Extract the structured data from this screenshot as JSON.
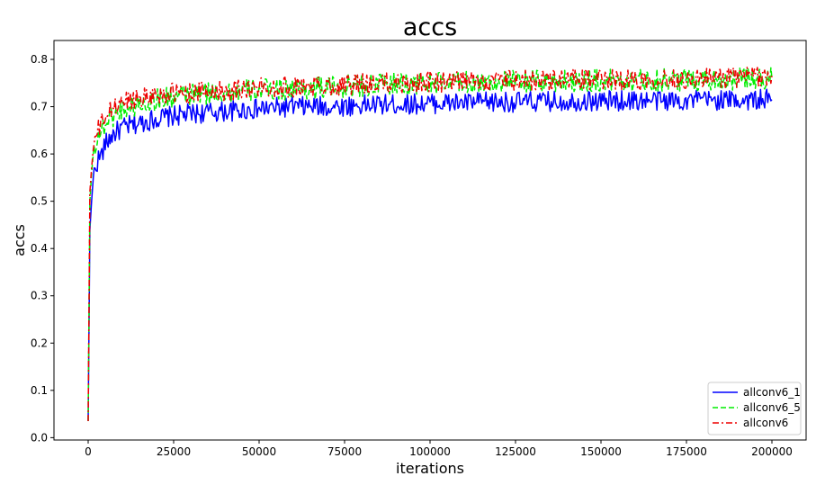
{
  "chart_data": {
    "type": "line",
    "title": "accs",
    "xlabel": "iterations",
    "ylabel": "accs",
    "xlim": [
      -10000,
      210000
    ],
    "ylim": [
      -0.005,
      0.84
    ],
    "grid": false,
    "legend_position": "lower-right",
    "xticks": [
      0,
      25000,
      50000,
      75000,
      100000,
      125000,
      150000,
      175000,
      200000
    ],
    "xtick_labels": [
      "0",
      "25000",
      "50000",
      "75000",
      "100000",
      "125000",
      "150000",
      "175000",
      "200000"
    ],
    "yticks": [
      0.0,
      0.1,
      0.2,
      0.3,
      0.4,
      0.5,
      0.6,
      0.7,
      0.8
    ],
    "ytick_labels": [
      "0.0",
      "0.1",
      "0.2",
      "0.3",
      "0.4",
      "0.5",
      "0.6",
      "0.7",
      "0.8"
    ],
    "series": [
      {
        "name": "allconv6_1",
        "color": "#0000ff",
        "style": "solid",
        "x": [
          0,
          500,
          1000,
          1500,
          2000,
          3000,
          4000,
          5000,
          7000,
          10000,
          15000,
          20000,
          25000,
          30000,
          40000,
          50000,
          60000,
          70000,
          80000,
          90000,
          100000,
          110000,
          120000,
          130000,
          140000,
          150000,
          160000,
          170000,
          180000,
          190000,
          200000
        ],
        "y": [
          0.035,
          0.44,
          0.5,
          0.55,
          0.57,
          0.59,
          0.6,
          0.62,
          0.64,
          0.655,
          0.665,
          0.675,
          0.68,
          0.685,
          0.69,
          0.695,
          0.7,
          0.7,
          0.703,
          0.705,
          0.707,
          0.708,
          0.71,
          0.71,
          0.712,
          0.712,
          0.713,
          0.713,
          0.714,
          0.714,
          0.715
        ]
      },
      {
        "name": "allconv6_5",
        "color": "#00ee00",
        "style": "dashed",
        "x": [
          0,
          500,
          1000,
          1500,
          2000,
          3000,
          4000,
          5000,
          7000,
          10000,
          15000,
          20000,
          25000,
          30000,
          40000,
          50000,
          60000,
          70000,
          80000,
          90000,
          100000,
          110000,
          120000,
          130000,
          140000,
          150000,
          160000,
          170000,
          180000,
          190000,
          200000
        ],
        "y": [
          0.035,
          0.5,
          0.56,
          0.6,
          0.62,
          0.64,
          0.65,
          0.665,
          0.68,
          0.695,
          0.705,
          0.715,
          0.72,
          0.725,
          0.73,
          0.735,
          0.738,
          0.74,
          0.745,
          0.748,
          0.75,
          0.752,
          0.752,
          0.753,
          0.755,
          0.755,
          0.756,
          0.757,
          0.758,
          0.758,
          0.76
        ]
      },
      {
        "name": "allconv6",
        "color": "#ee0000",
        "style": "dashdot",
        "x": [
          0,
          500,
          1000,
          1500,
          2000,
          3000,
          4000,
          5000,
          7000,
          10000,
          15000,
          20000,
          25000,
          30000,
          40000,
          50000,
          60000,
          70000,
          80000,
          90000,
          100000,
          110000,
          120000,
          130000,
          140000,
          150000,
          160000,
          170000,
          180000,
          190000,
          200000
        ],
        "y": [
          0.035,
          0.52,
          0.57,
          0.61,
          0.63,
          0.65,
          0.665,
          0.68,
          0.695,
          0.71,
          0.72,
          0.725,
          0.728,
          0.73,
          0.735,
          0.74,
          0.742,
          0.745,
          0.748,
          0.75,
          0.752,
          0.753,
          0.755,
          0.755,
          0.757,
          0.757,
          0.758,
          0.759,
          0.76,
          0.762,
          0.765
        ]
      }
    ]
  }
}
